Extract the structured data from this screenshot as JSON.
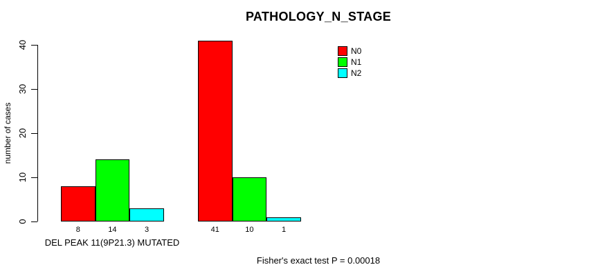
{
  "chart_data": {
    "type": "bar",
    "title": "PATHOLOGY_N_STAGE",
    "xlabel": "",
    "ylabel": "number of cases",
    "ylim": [
      0,
      40
    ],
    "yticks": [
      0,
      10,
      20,
      30,
      40
    ],
    "categories": [
      "DEL PEAK 11(9P21.3) MUTATED",
      ""
    ],
    "series": [
      {
        "name": "N0",
        "color": "#FF0000",
        "values": [
          8,
          41
        ]
      },
      {
        "name": "N1",
        "color": "#00FF00",
        "values": [
          14,
          10
        ]
      },
      {
        "name": "N2",
        "color": "#00FFFF",
        "values": [
          3,
          1
        ]
      }
    ],
    "bar_border_color": "#000000",
    "grid": false,
    "legend_position": "top-right",
    "annotation": "Fisher's exact test P = 0.00018"
  },
  "legend": {
    "items": [
      {
        "label": "N0",
        "color": "#FF0000"
      },
      {
        "label": "N1",
        "color": "#00FF00"
      },
      {
        "label": "N2",
        "color": "#00FFFF"
      }
    ]
  }
}
